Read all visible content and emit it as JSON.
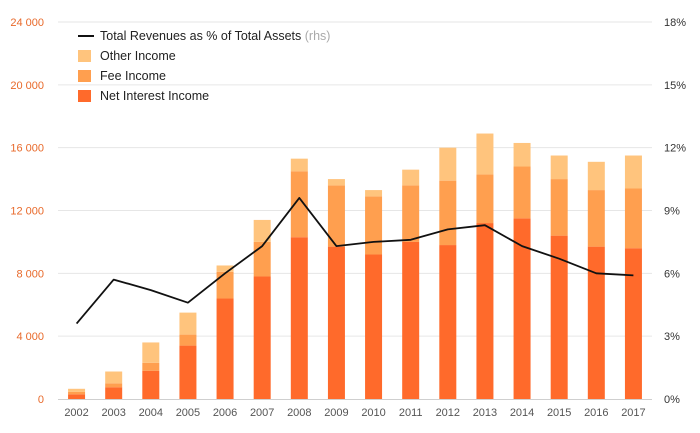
{
  "chart_data": {
    "type": "bar",
    "stacked": true,
    "categories": [
      "2002",
      "2003",
      "2004",
      "2005",
      "2006",
      "2007",
      "2008",
      "2009",
      "2010",
      "2011",
      "2012",
      "2013",
      "2014",
      "2015",
      "2016",
      "2017"
    ],
    "series": [
      {
        "name": "Net Interest Income",
        "color": "#ff6a2b",
        "values": [
          300,
          750,
          1800,
          3400,
          6400,
          7800,
          10300,
          9700,
          9200,
          10000,
          9800,
          11200,
          11500,
          10400,
          9700,
          9600
        ]
      },
      {
        "name": "Fee Income",
        "color": "#ff9f4f",
        "values": [
          150,
          250,
          500,
          700,
          1700,
          2200,
          4200,
          3900,
          3700,
          3600,
          4100,
          3100,
          3300,
          3600,
          3600,
          3800
        ]
      },
      {
        "name": "Other Income",
        "color": "#ffc47d",
        "values": [
          200,
          750,
          1300,
          1400,
          400,
          1400,
          800,
          400,
          400,
          1000,
          2100,
          2600,
          1500,
          1500,
          1800,
          2100
        ]
      }
    ],
    "line_series": {
      "name": "Total Revenues as % of Total Assets",
      "suffix": " (rhs)",
      "axis": "right",
      "color": "#111111",
      "values": [
        3.6,
        5.7,
        5.2,
        4.6,
        6.0,
        7.3,
        9.6,
        7.3,
        7.5,
        7.6,
        8.1,
        8.3,
        7.3,
        6.7,
        6.0,
        5.9
      ]
    },
    "left_axis": {
      "ylim": [
        0,
        24000
      ],
      "ticks": [
        "0",
        "4 000",
        "8 000",
        "12 000",
        "16 000",
        "20 000",
        "24 000"
      ],
      "tick_values": [
        0,
        4000,
        8000,
        12000,
        16000,
        20000,
        24000
      ]
    },
    "right_axis": {
      "ylim": [
        0,
        18
      ],
      "ticks": [
        "0%",
        "3%",
        "6%",
        "9%",
        "12%",
        "15%",
        "18%"
      ],
      "tick_values": [
        0,
        3,
        6,
        9,
        12,
        15,
        18
      ]
    },
    "legend_position": "top-left",
    "grid": true,
    "title": "",
    "xlabel": "",
    "ylabel": ""
  }
}
